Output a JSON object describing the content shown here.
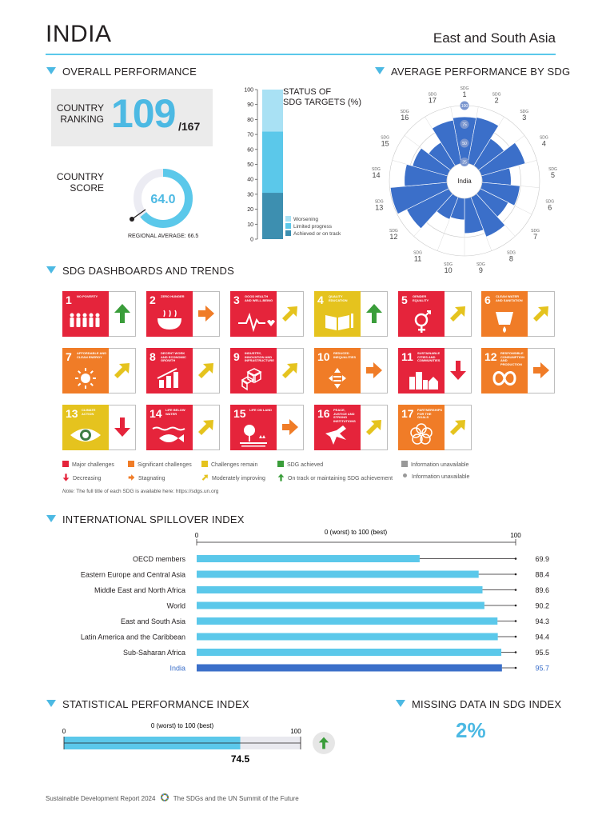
{
  "header": {
    "country": "INDIA",
    "region": "East and South Asia"
  },
  "sections": {
    "overall": "OVERALL PERFORMANCE",
    "avg_sdg": "AVERAGE PERFORMANCE BY SDG",
    "dashboards": "SDG DASHBOARDS AND TRENDS",
    "spillover": "INTERNATIONAL SPILLOVER INDEX",
    "spi": "STATISTICAL PERFORMANCE INDEX",
    "missing": "MISSING DATA IN SDG INDEX"
  },
  "ranking": {
    "label_line1": "COUNTRY",
    "label_line2": "RANKING",
    "value": "109",
    "of": "/167"
  },
  "score": {
    "label_line1": "COUNTRY",
    "label_line2": "SCORE",
    "value": "64.0",
    "fraction": 0.64,
    "regional_average_text": "REGIONAL AVERAGE: 66.5",
    "regional_average": 66.5
  },
  "status_targets": {
    "title_line1": "STATUS OF",
    "title_line2": "SDG TARGETS (%)",
    "ticks": [
      "100",
      "90",
      "80",
      "70",
      "60",
      "50",
      "40",
      "30",
      "20",
      "10",
      "0"
    ],
    "segments": [
      {
        "label": "Achieved or on track",
        "value": 31,
        "color": "#3d8fb0"
      },
      {
        "label": "Limited progress",
        "value": 41,
        "color": "#5bc8ea"
      },
      {
        "label": "Worsening",
        "value": 28,
        "color": "#a9e1f4"
      }
    ],
    "legend": [
      "Worsening",
      "Limited progress",
      "Achieved or on track"
    ]
  },
  "radar": {
    "center_label": "India",
    "ring_labels": [
      "100",
      "75",
      "50",
      "25"
    ],
    "sdg_prefix": "SDG",
    "sdgs": [
      "1",
      "2",
      "3",
      "4",
      "5",
      "6",
      "7",
      "8",
      "9",
      "10",
      "11",
      "12",
      "13",
      "14",
      "15",
      "16",
      "17"
    ],
    "values": [
      85,
      86,
      66,
      84,
      62,
      74,
      65,
      80,
      70,
      52,
      55,
      86,
      99,
      80,
      72,
      60,
      82
    ],
    "color": "#3b6fc9"
  },
  "dashboard": {
    "goals": [
      {
        "n": "1",
        "t": "NO POVERTY",
        "color": "#e5243b",
        "trend": "up",
        "tcolor": "#3a9d3a",
        "status": "#e5243b"
      },
      {
        "n": "2",
        "t": "ZERO HUNGER",
        "color": "#dda63a",
        "trend": "right",
        "tcolor": "#f07c27",
        "status": "#e5243b"
      },
      {
        "n": "3",
        "t": "GOOD HEALTH AND WELL-BEING",
        "color": "#4c9f38",
        "trend": "diag",
        "tcolor": "#e5c31e",
        "status": "#e5243b"
      },
      {
        "n": "4",
        "t": "QUALITY EDUCATION",
        "color": "#c5192d",
        "trend": "up",
        "tcolor": "#3a9d3a",
        "status": "#e5c31e"
      },
      {
        "n": "5",
        "t": "GENDER EQUALITY",
        "color": "#ff3a21",
        "trend": "diag",
        "tcolor": "#e5c31e",
        "status": "#e5243b"
      },
      {
        "n": "6",
        "t": "CLEAN WATER AND SANITATION",
        "color": "#26bde2",
        "trend": "diag",
        "tcolor": "#e5c31e",
        "status": "#f07c27"
      },
      {
        "n": "7",
        "t": "AFFORDABLE AND CLEAN ENERGY",
        "color": "#fcc30b",
        "trend": "diag",
        "tcolor": "#e5c31e",
        "status": "#f07c27"
      },
      {
        "n": "8",
        "t": "DECENT WORK AND ECONOMIC GROWTH",
        "color": "#a21942",
        "trend": "diag",
        "tcolor": "#e5c31e",
        "status": "#e5243b"
      },
      {
        "n": "9",
        "t": "INDUSTRY, INNOVATION AND INFRASTRUCTURE",
        "color": "#fd6925",
        "trend": "diag",
        "tcolor": "#e5c31e",
        "status": "#e5243b"
      },
      {
        "n": "10",
        "t": "REDUCED INEQUALITIES",
        "color": "#dd1367",
        "trend": "right",
        "tcolor": "#f07c27",
        "status": "#f07c27"
      },
      {
        "n": "11",
        "t": "SUSTAINABLE CITIES AND COMMUNITIES",
        "color": "#fd9d24",
        "trend": "down",
        "tcolor": "#e5243b",
        "status": "#e5243b"
      },
      {
        "n": "12",
        "t": "RESPONSIBLE CONSUMPTION AND PRODUCTION",
        "color": "#bf8b2e",
        "trend": "right",
        "tcolor": "#f07c27",
        "status": "#f07c27"
      },
      {
        "n": "13",
        "t": "CLIMATE ACTION",
        "color": "#3f7e44",
        "trend": "down",
        "tcolor": "#e5243b",
        "status": "#e5c31e"
      },
      {
        "n": "14",
        "t": "LIFE BELOW WATER",
        "color": "#0a97d9",
        "trend": "diag",
        "tcolor": "#e5c31e",
        "status": "#e5243b"
      },
      {
        "n": "15",
        "t": "LIFE ON LAND",
        "color": "#56c02b",
        "trend": "right",
        "tcolor": "#f07c27",
        "status": "#e5243b"
      },
      {
        "n": "16",
        "t": "PEACE, JUSTICE AND STRONG INSTITUTIONS",
        "color": "#00689d",
        "trend": "diag",
        "tcolor": "#e5c31e",
        "status": "#e5243b"
      },
      {
        "n": "17",
        "t": "PARTNERSHIPS FOR THE GOALS",
        "color": "#19486a",
        "trend": "diag",
        "tcolor": "#e5c31e",
        "status": "#f07c27"
      }
    ],
    "legend_row1": [
      {
        "label": "Major challenges",
        "color": "#e5243b"
      },
      {
        "label": "Significant challenges",
        "color": "#f07c27"
      },
      {
        "label": "Challenges remain",
        "color": "#e5c31e"
      },
      {
        "label": "SDG achieved",
        "color": "#3a9d3a"
      },
      {
        "label": "Information unavailable",
        "color": "#999999"
      }
    ],
    "legend_row2": [
      {
        "label": "Decreasing",
        "sym": "down",
        "color": "#e5243b"
      },
      {
        "label": "Stagnating",
        "sym": "right",
        "color": "#f07c27"
      },
      {
        "label": "Moderately improving",
        "sym": "diag",
        "color": "#e5c31e"
      },
      {
        "label": "On track or maintaining SDG achievement",
        "sym": "up",
        "color": "#3a9d3a"
      },
      {
        "label": "Information unavailable",
        "sym": "dot",
        "color": "#999999"
      }
    ],
    "note_label": "Note:",
    "note_text": "The full title of each SDG is available here: https://sdgs.un.org"
  },
  "spillover": {
    "scale_left": "0",
    "scale_right": "100",
    "scale_caption": "0 (worst) to 100 (best)",
    "rows": [
      {
        "label": "OECD members",
        "value": 69.9,
        "text": "69.9"
      },
      {
        "label": "Eastern Europe and Central Asia",
        "value": 88.4,
        "text": "88.4"
      },
      {
        "label": "Middle East and North Africa",
        "value": 89.6,
        "text": "89.6"
      },
      {
        "label": "World",
        "value": 90.2,
        "text": "90.2"
      },
      {
        "label": "East and South Asia",
        "value": 94.3,
        "text": "94.3"
      },
      {
        "label": "Latin America and the Caribbean",
        "value": 94.4,
        "text": "94.4"
      },
      {
        "label": "Sub-Saharan Africa",
        "value": 95.5,
        "text": "95.5"
      },
      {
        "label": "India",
        "value": 95.7,
        "text": "95.7",
        "highlight": true
      }
    ],
    "bar_color": "#5bc8ea",
    "highlight_color": "#3b6fc9"
  },
  "spi": {
    "scale_left": "0",
    "scale_right": "100",
    "scale_caption": "0 (worst) to 100 (best)",
    "value": 74.5,
    "text": "74.5",
    "trend": "up"
  },
  "missing": {
    "value": "2%"
  },
  "footer": {
    "left": "Sustainable Development Report 2024",
    "right": "The SDGs and the UN Summit of the Future"
  }
}
